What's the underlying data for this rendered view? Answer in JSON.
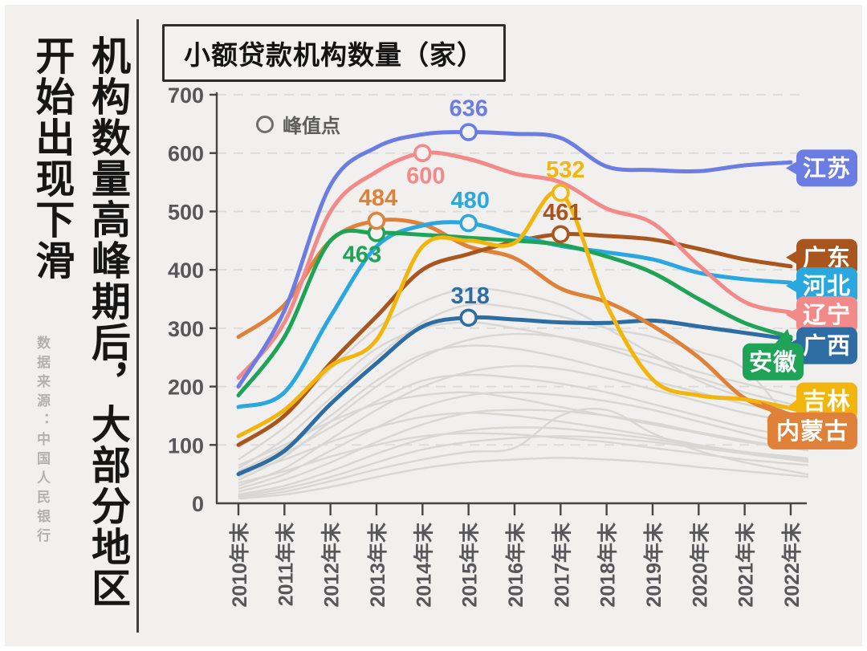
{
  "page": {
    "heading": "机构数量高峰期后，大部分地区开始出现下滑",
    "source_note": "数据来源：中国人民银行"
  },
  "chart_data": {
    "type": "line",
    "title": "小额贷款机构数量（家）",
    "legend": {
      "label": "峰值点",
      "position": "top-left",
      "marker": "open-circle"
    },
    "grid": "horizontal-dashed",
    "ylim": [
      0,
      700
    ],
    "yticks": [
      0,
      100,
      200,
      300,
      400,
      500,
      600,
      700
    ],
    "x_categories": [
      "2010年末",
      "2011年末",
      "2012年末",
      "2013年末",
      "2014年末",
      "2015年末",
      "2016年末",
      "2017年末",
      "2018年末",
      "2019年末",
      "2020年末",
      "2021年末",
      "2022年末"
    ],
    "series": [
      {
        "name": "江苏",
        "key": "jiangsu",
        "color": "#6B7CE3",
        "values": [
          200,
          330,
          545,
          610,
          632,
          636,
          633,
          626,
          577,
          571,
          569,
          579,
          584
        ],
        "peak": {
          "value": 636,
          "at": "2015年末"
        }
      },
      {
        "name": "辽宁",
        "key": "liaoning",
        "color": "#F38A8A",
        "values": [
          215,
          310,
          500,
          568,
          600,
          590,
          565,
          550,
          505,
          480,
          408,
          345,
          327
        ],
        "peak": {
          "value": 600,
          "at": "2014年末"
        }
      },
      {
        "name": "广东",
        "key": "guangdong",
        "color": "#A9561E",
        "values": [
          100,
          150,
          240,
          320,
          400,
          427,
          448,
          461,
          458,
          452,
          436,
          418,
          406
        ],
        "peak": {
          "value": 461,
          "at": "2017年末"
        }
      },
      {
        "name": "河北",
        "key": "hebei",
        "color": "#2BA7E0",
        "values": [
          165,
          190,
          320,
          440,
          476,
          480,
          460,
          441,
          430,
          418,
          395,
          384,
          378
        ],
        "peak": {
          "value": 480,
          "at": "2015年末"
        }
      },
      {
        "name": "安徽",
        "key": "anhui",
        "color": "#1FA356",
        "values": [
          185,
          285,
          450,
          463,
          460,
          455,
          450,
          443,
          423,
          395,
          350,
          309,
          285
        ],
        "peak": {
          "value": 463,
          "at": "2013年末"
        }
      },
      {
        "name": "吉林",
        "key": "jilin",
        "color": "#F2B50E",
        "values": [
          115,
          160,
          235,
          280,
          440,
          450,
          446,
          532,
          340,
          212,
          185,
          178,
          163
        ],
        "peak": {
          "value": 532,
          "at": "2017年末"
        }
      },
      {
        "name": "内蒙古",
        "key": "neimenggu",
        "color": "#E0813A",
        "values": [
          285,
          340,
          450,
          484,
          478,
          440,
          420,
          368,
          345,
          304,
          250,
          180,
          150
        ],
        "peak": {
          "value": 484,
          "at": "2013年末"
        }
      },
      {
        "name": "广西",
        "key": "guangxi",
        "color": "#2E6CA4",
        "values": [
          50,
          90,
          170,
          240,
          303,
          318,
          315,
          310,
          309,
          313,
          303,
          292,
          281
        ],
        "peak": {
          "value": 318,
          "at": "2015年末"
        }
      }
    ],
    "background_series": [
      [
        95,
        150,
        230,
        300,
        345,
        368,
        360,
        340,
        300,
        255,
        210,
        180,
        150
      ],
      [
        60,
        110,
        180,
        250,
        310,
        340,
        335,
        320,
        300,
        285,
        260,
        230,
        140
      ],
      [
        75,
        130,
        200,
        265,
        300,
        310,
        300,
        285,
        265,
        240,
        215,
        190,
        170
      ],
      [
        40,
        80,
        140,
        200,
        250,
        280,
        290,
        285,
        270,
        250,
        225,
        205,
        185
      ],
      [
        55,
        95,
        150,
        210,
        255,
        270,
        265,
        250,
        230,
        210,
        190,
        170,
        155
      ],
      [
        30,
        60,
        110,
        160,
        200,
        225,
        235,
        230,
        215,
        195,
        175,
        155,
        140
      ],
      [
        45,
        85,
        130,
        175,
        210,
        220,
        215,
        205,
        190,
        170,
        150,
        130,
        115
      ],
      [
        25,
        50,
        90,
        130,
        165,
        185,
        190,
        185,
        175,
        160,
        140,
        120,
        100
      ],
      [
        65,
        100,
        140,
        170,
        185,
        190,
        180,
        165,
        150,
        135,
        120,
        105,
        95
      ],
      [
        20,
        40,
        70,
        105,
        135,
        155,
        160,
        158,
        150,
        138,
        122,
        108,
        95
      ],
      [
        15,
        30,
        55,
        85,
        110,
        125,
        130,
        128,
        120,
        110,
        98,
        88,
        80
      ],
      [
        35,
        55,
        80,
        100,
        115,
        120,
        118,
        112,
        105,
        95,
        85,
        75,
        68
      ],
      [
        10,
        20,
        38,
        58,
        75,
        88,
        95,
        150,
        160,
        120,
        90,
        70,
        55
      ],
      [
        8,
        15,
        28,
        45,
        60,
        70,
        75,
        78,
        75,
        70,
        62,
        55,
        48
      ],
      [
        50,
        75,
        105,
        130,
        148,
        155,
        150,
        140,
        128,
        115,
        100,
        88,
        78
      ],
      [
        12,
        25,
        45,
        70,
        92,
        105,
        112,
        115,
        112,
        105,
        95,
        85,
        75
      ]
    ]
  }
}
